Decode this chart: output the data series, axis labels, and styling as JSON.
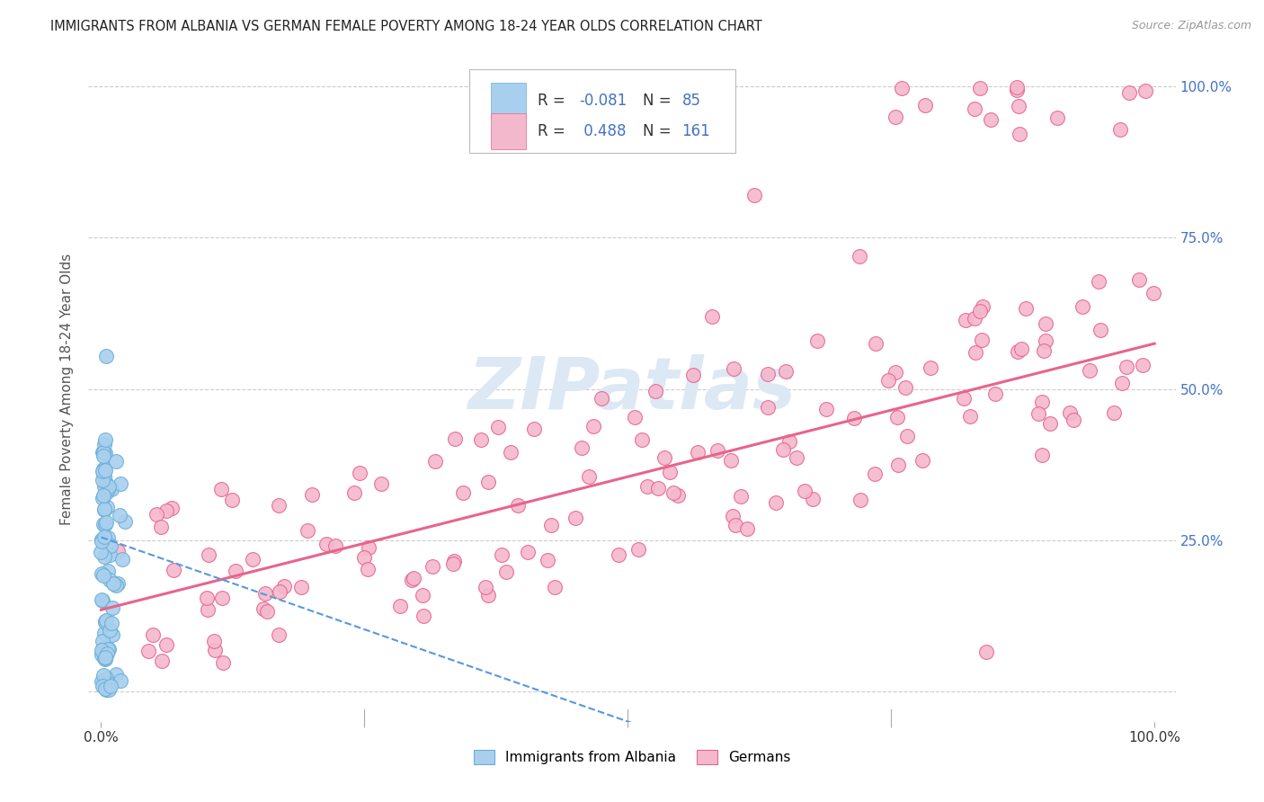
{
  "title": "IMMIGRANTS FROM ALBANIA VS GERMAN FEMALE POVERTY AMONG 18-24 YEAR OLDS CORRELATION CHART",
  "source": "Source: ZipAtlas.com",
  "ylabel": "Female Poverty Among 18-24 Year Olds",
  "legend_label1": "Immigrants from Albania",
  "legend_label2": "Germans",
  "R1": -0.081,
  "N1": 85,
  "R2": 0.488,
  "N2": 161,
  "color_albania_fill": "#a8d0ee",
  "color_albania_edge": "#6baed6",
  "color_german_fill": "#f4b8cc",
  "color_german_edge": "#e8648c",
  "color_trendline_albania": "#5599dd",
  "color_trendline_german": "#e8648c",
  "background": "#ffffff",
  "grid_color": "#cccccc",
  "right_axis_color": "#4472c4",
  "watermark_color": "#dde8f5"
}
